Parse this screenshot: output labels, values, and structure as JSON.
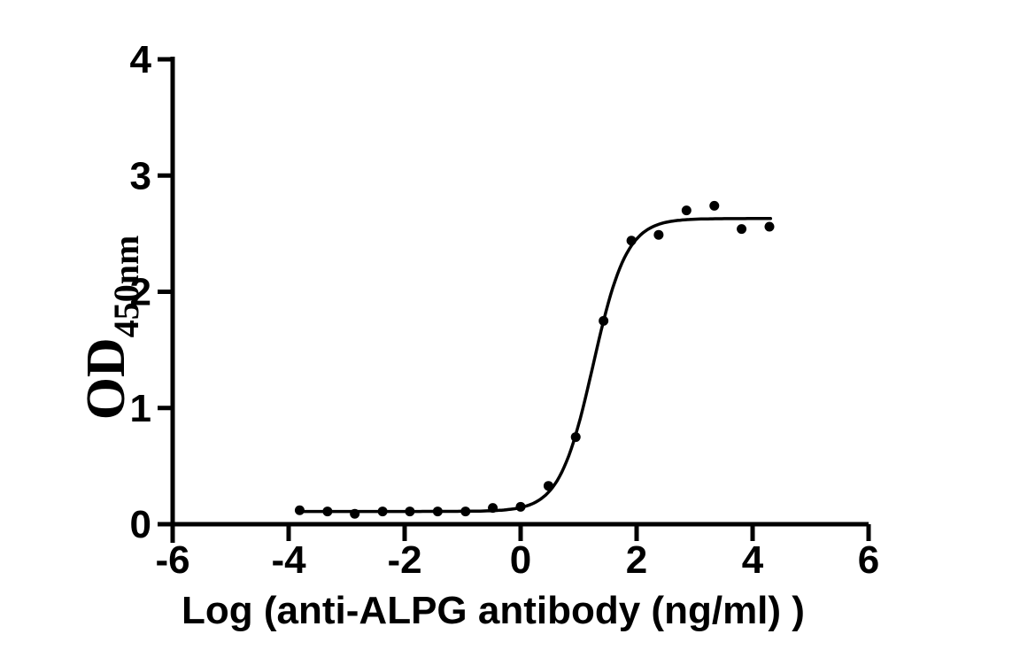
{
  "figure": {
    "background_color": "#ffffff",
    "axis_color": "#000000",
    "point_color": "#000000",
    "curve_color": "#000000"
  },
  "chart_data": {
    "type": "scatter",
    "title": "",
    "xlabel": "Log (anti-ALPG antibody (ng/ml) )",
    "ylabel_main": "OD",
    "ylabel_sub": "450nm",
    "xlim": [
      -6,
      6
    ],
    "ylim": [
      0,
      4
    ],
    "x_ticks": [
      -6,
      -4,
      -2,
      0,
      2,
      4,
      6
    ],
    "y_ticks": [
      0,
      1,
      2,
      3,
      4
    ],
    "grid": false,
    "legend": "none",
    "points": {
      "x": [
        -3.81,
        -3.33,
        -2.86,
        -2.38,
        -1.91,
        -1.43,
        -0.95,
        -0.48,
        0.0,
        0.48,
        0.95,
        1.43,
        1.91,
        2.38,
        2.86,
        3.34,
        3.81,
        4.29
      ],
      "y": [
        0.12,
        0.11,
        0.09,
        0.11,
        0.11,
        0.11,
        0.11,
        0.14,
        0.15,
        0.33,
        0.75,
        1.75,
        2.44,
        2.49,
        2.7,
        2.74,
        2.54,
        2.56
      ]
    },
    "fit_curve": {
      "model": "4PL",
      "bottom": 0.11,
      "top": 2.63,
      "logEC50": 1.25,
      "hill": 1.5,
      "x_start": -3.81,
      "x_end": 4.31
    }
  }
}
